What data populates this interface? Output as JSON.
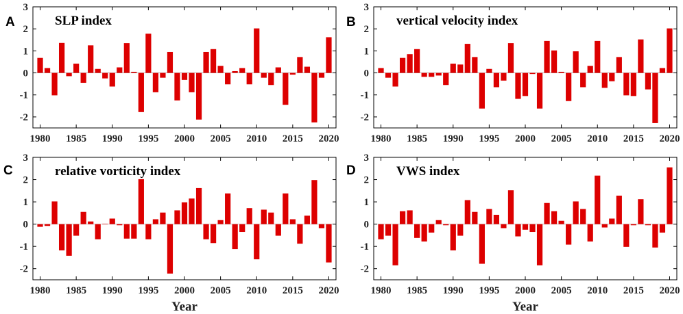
{
  "colors": {
    "bar": "#dd0000",
    "axis": "#000000"
  },
  "chart_data": [
    {
      "type": "bar",
      "letter": "A",
      "title": "SLP index",
      "xlabel": "",
      "ylabel": "",
      "ylim": [
        -2.5,
        3
      ],
      "yticks": [
        3,
        2,
        1,
        0,
        -1,
        -2
      ],
      "ytick_labels": [
        "3",
        "2",
        "1",
        "0",
        "-1",
        "-2"
      ],
      "xlim": [
        1979,
        2021
      ],
      "xticks": [
        1980,
        1985,
        1990,
        1995,
        2000,
        2005,
        2010,
        2015,
        2020
      ],
      "xtick_labels": [
        "1980",
        "1985",
        "1990",
        "1995",
        "2000",
        "2005",
        "2010",
        "2015",
        "2020"
      ],
      "x": [
        1980,
        1981,
        1982,
        1983,
        1984,
        1985,
        1986,
        1987,
        1988,
        1989,
        1990,
        1991,
        1992,
        1993,
        1994,
        1995,
        1996,
        1997,
        1998,
        1999,
        2000,
        2001,
        2002,
        2003,
        2004,
        2005,
        2006,
        2007,
        2008,
        2009,
        2010,
        2011,
        2012,
        2013,
        2014,
        2015,
        2016,
        2017,
        2018,
        2019,
        2020
      ],
      "values": [
        0.68,
        0.22,
        -1.02,
        1.36,
        -0.15,
        0.42,
        -0.45,
        1.25,
        0.18,
        -0.25,
        -0.62,
        0.25,
        1.35,
        0.05,
        -1.78,
        1.78,
        -0.88,
        -0.22,
        0.95,
        -1.25,
        -0.32,
        -0.88,
        -2.12,
        0.95,
        1.08,
        0.32,
        -0.52,
        0.08,
        0.22,
        -0.52,
        2.02,
        -0.22,
        -0.55,
        0.25,
        -1.45,
        -0.08,
        0.72,
        0.28,
        -2.25,
        -0.22,
        1.62
      ]
    },
    {
      "type": "bar",
      "letter": "B",
      "title": "vertical velocity index",
      "xlabel": "",
      "ylabel": "",
      "ylim": [
        -2.5,
        3
      ],
      "yticks": [
        3,
        2,
        1,
        0,
        -1,
        -2
      ],
      "ytick_labels": [
        "3",
        "2",
        "1",
        "0",
        "-1",
        "-2"
      ],
      "xlim": [
        1979,
        2021
      ],
      "xticks": [
        1980,
        1985,
        1990,
        1995,
        2000,
        2005,
        2010,
        2015,
        2020
      ],
      "xtick_labels": [
        "1980",
        "1985",
        "1990",
        "1995",
        "2000",
        "2005",
        "2010",
        "2015",
        "2020"
      ],
      "x": [
        1980,
        1981,
        1982,
        1983,
        1984,
        1985,
        1986,
        1987,
        1988,
        1989,
        1990,
        1991,
        1992,
        1993,
        1994,
        1995,
        1996,
        1997,
        1998,
        1999,
        2000,
        2001,
        2002,
        2003,
        2004,
        2005,
        2006,
        2007,
        2008,
        2009,
        2010,
        2011,
        2012,
        2013,
        2014,
        2015,
        2016,
        2017,
        2018,
        2019,
        2020
      ],
      "values": [
        0.22,
        -0.22,
        -0.62,
        0.68,
        0.85,
        1.08,
        -0.18,
        -0.18,
        -0.12,
        -0.55,
        0.42,
        0.38,
        1.32,
        0.72,
        -1.62,
        0.18,
        -0.65,
        -0.35,
        1.35,
        -1.18,
        -1.05,
        -0.05,
        -1.62,
        1.45,
        1.02,
        0.05,
        -1.28,
        0.98,
        -0.65,
        0.32,
        1.45,
        -0.68,
        -0.38,
        0.72,
        -1.02,
        -1.05,
        1.52,
        -0.75,
        -2.28,
        0.22,
        2.02
      ]
    },
    {
      "type": "bar",
      "letter": "C",
      "title": "relative vorticity index",
      "xlabel": "Year",
      "ylabel": "",
      "ylim": [
        -2.5,
        3
      ],
      "yticks": [
        3,
        2,
        1,
        0,
        -1,
        -2
      ],
      "ytick_labels": [
        "3",
        "2",
        "1",
        "0",
        "-1",
        "-2"
      ],
      "xlim": [
        1979,
        2021
      ],
      "xticks": [
        1980,
        1985,
        1990,
        1995,
        2000,
        2005,
        2010,
        2015,
        2020
      ],
      "xtick_labels": [
        "1980",
        "1985",
        "1990",
        "1995",
        "2000",
        "2005",
        "2010",
        "2015",
        "2020"
      ],
      "x": [
        1980,
        1981,
        1982,
        1983,
        1984,
        1985,
        1986,
        1987,
        1988,
        1989,
        1990,
        1991,
        1992,
        1993,
        1994,
        1995,
        1996,
        1997,
        1998,
        1999,
        2000,
        2001,
        2002,
        2003,
        2004,
        2005,
        2006,
        2007,
        2008,
        2009,
        2010,
        2011,
        2012,
        2013,
        2014,
        2015,
        2016,
        2017,
        2018,
        2019,
        2020
      ],
      "values": [
        -0.12,
        -0.08,
        1.02,
        -1.18,
        -1.42,
        -0.52,
        0.55,
        0.12,
        -0.68,
        0.02,
        0.25,
        -0.05,
        -0.65,
        -0.65,
        2.02,
        -0.68,
        0.22,
        0.52,
        -2.22,
        0.62,
        0.98,
        1.15,
        1.62,
        -0.68,
        -0.85,
        0.18,
        1.38,
        -1.12,
        -0.35,
        0.72,
        -1.58,
        0.65,
        0.52,
        -0.52,
        1.38,
        0.22,
        -0.88,
        0.38,
        1.98,
        -0.18,
        -1.72
      ]
    },
    {
      "type": "bar",
      "letter": "D",
      "title": "VWS index",
      "xlabel": "Year",
      "ylabel": "",
      "ylim": [
        -2.5,
        3
      ],
      "yticks": [
        3,
        2,
        1,
        0,
        -1,
        -2
      ],
      "ytick_labels": [
        "3",
        "2",
        "1",
        "0",
        "-1",
        "-2"
      ],
      "xlim": [
        1979,
        2021
      ],
      "xticks": [
        1980,
        1985,
        1990,
        1995,
        2000,
        2005,
        2010,
        2015,
        2020
      ],
      "xtick_labels": [
        "1980",
        "1985",
        "1990",
        "1995",
        "2000",
        "2005",
        "2010",
        "2015",
        "2020"
      ],
      "x": [
        1980,
        1981,
        1982,
        1983,
        1984,
        1985,
        1986,
        1987,
        1988,
        1989,
        1990,
        1991,
        1992,
        1993,
        1994,
        1995,
        1996,
        1997,
        1998,
        1999,
        2000,
        2001,
        2002,
        2003,
        2004,
        2005,
        2006,
        2007,
        2008,
        2009,
        2010,
        2011,
        2012,
        2013,
        2014,
        2015,
        2016,
        2017,
        2018,
        2019,
        2020
      ],
      "values": [
        -0.68,
        -0.52,
        -1.85,
        0.58,
        0.62,
        -0.62,
        -0.78,
        -0.38,
        0.18,
        -0.05,
        -1.18,
        -0.52,
        1.08,
        0.55,
        -1.78,
        0.68,
        0.42,
        -0.18,
        1.52,
        -0.55,
        -0.25,
        -0.35,
        -1.85,
        0.95,
        0.58,
        0.15,
        -0.92,
        1.02,
        0.68,
        -0.78,
        2.18,
        -0.15,
        0.25,
        1.28,
        -1.02,
        -0.05,
        1.12,
        -0.05,
        -1.05,
        -0.38,
        2.55
      ]
    }
  ]
}
